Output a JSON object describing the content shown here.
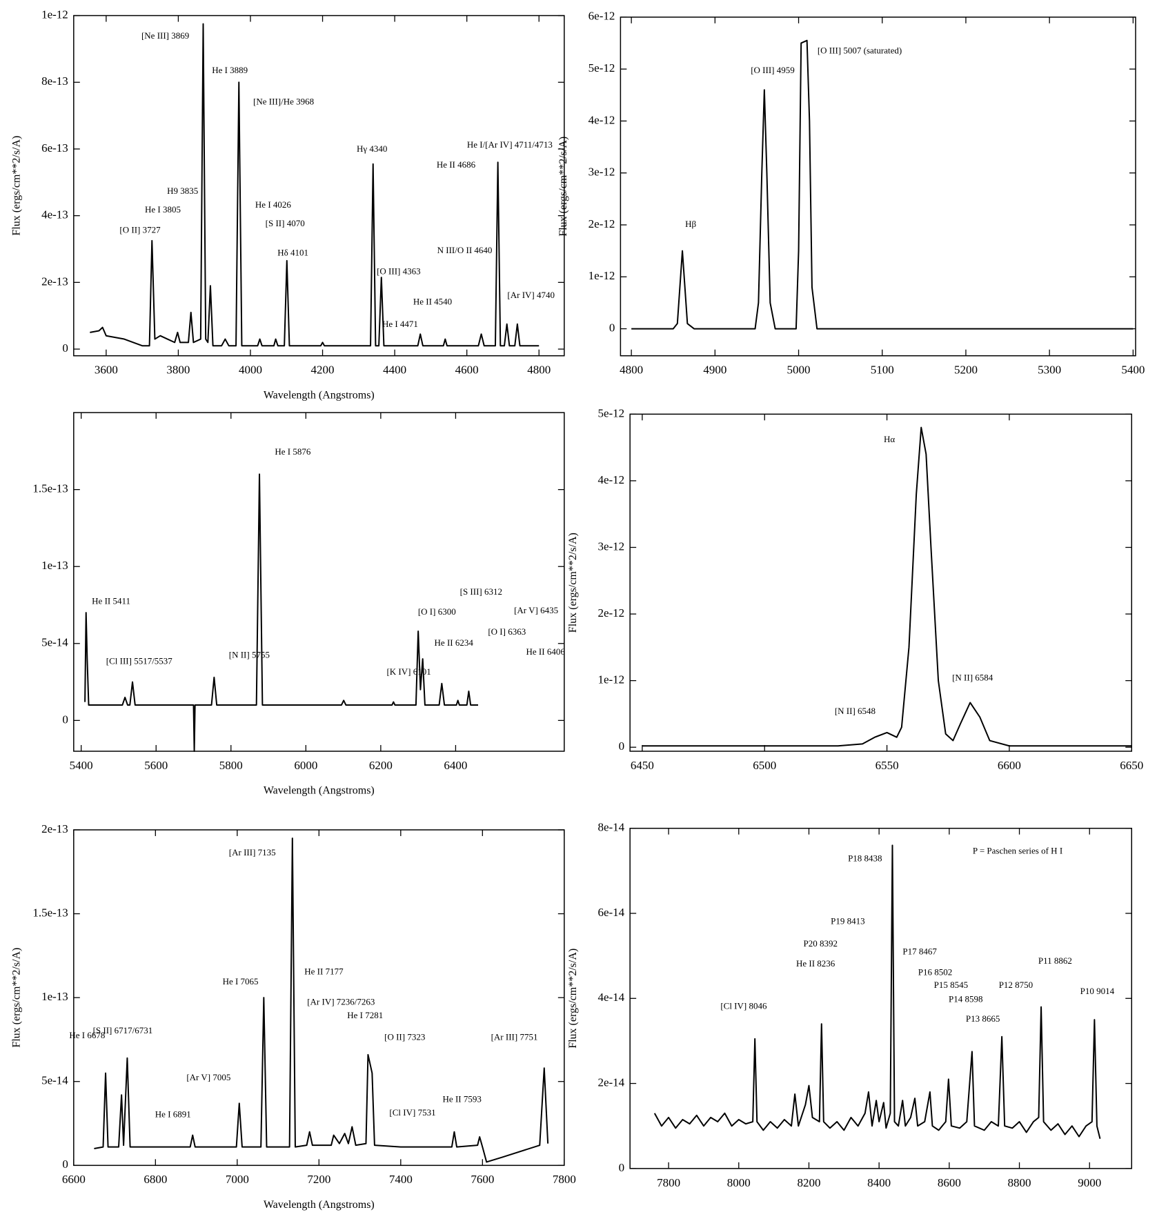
{
  "chart_data": [
    {
      "type": "line",
      "color": "#000000",
      "x_label": "Wavelength (Angstroms)",
      "y_label": "Flux (ergs/cm**2/s/A)",
      "xlim": [
        3510,
        4870
      ],
      "ylim": [
        -2e-14,
        1e-12
      ],
      "xticks": [
        3600,
        3800,
        4000,
        4200,
        4400,
        4600,
        4800
      ],
      "yticks": [
        0,
        {
          "value": 2e-13,
          "label": "2e-13"
        },
        {
          "value": 4e-13,
          "label": "4e-13"
        },
        {
          "value": 6e-13,
          "label": "6e-13"
        },
        {
          "value": 8e-13,
          "label": "8e-13"
        },
        {
          "value": 1e-12,
          "label": "1e-12"
        }
      ],
      "x": [
        3555,
        3580,
        3590,
        3600,
        3650,
        3700,
        3720,
        3727,
        3735,
        3750,
        3770,
        3790,
        3798,
        3805,
        3828,
        3835,
        3842,
        3862,
        3869,
        3876,
        3882,
        3889,
        3896,
        3920,
        3930,
        3940,
        3960,
        3968,
        3976,
        4020,
        4026,
        4032,
        4065,
        4070,
        4076,
        4094,
        4101,
        4108,
        4195,
        4200,
        4205,
        4333,
        4340,
        4347,
        4356,
        4363,
        4370,
        4464,
        4471,
        4478,
        4535,
        4540,
        4545,
        4632,
        4640,
        4648,
        4679,
        4686,
        4693,
        4704,
        4711,
        4718,
        4733,
        4740,
        4747,
        4800
      ],
      "values": [
        5e-14,
        5.5e-14,
        6.5e-14,
        4e-14,
        3e-14,
        1e-14,
        1e-14,
        3.25e-13,
        3e-14,
        4e-14,
        3e-14,
        2e-14,
        5e-14,
        2e-14,
        2e-14,
        1.1e-13,
        2e-14,
        3e-14,
        9.75e-13,
        3e-14,
        2e-14,
        1.9e-13,
        1e-14,
        1e-14,
        3e-14,
        1e-14,
        1e-14,
        8e-13,
        1e-14,
        1e-14,
        3e-14,
        1e-14,
        1e-14,
        3e-14,
        1e-14,
        1e-14,
        2.65e-13,
        1e-14,
        1e-14,
        2e-14,
        1e-14,
        1e-14,
        5.55e-13,
        1e-14,
        1e-14,
        2.15e-13,
        1e-14,
        1e-14,
        4.5e-14,
        1e-14,
        1e-14,
        3e-14,
        1e-14,
        1e-14,
        4.5e-14,
        1e-14,
        1e-14,
        5.6e-13,
        1e-14,
        1e-14,
        7.5e-14,
        1e-14,
        1e-14,
        7.5e-14,
        1e-14,
        1e-14
      ],
      "annotations": [
        {
          "text": "[Ne III] 3869",
          "x": 3764,
          "y": 9.37e-13
        },
        {
          "text": "He I 3889",
          "x": 3943,
          "y": 8.34e-13
        },
        {
          "text": "[Ne III]/He 3968",
          "x": 4092,
          "y": 7.4e-13
        },
        {
          "text": "Hγ 4340",
          "x": 4337,
          "y": 5.98e-13
        },
        {
          "text": "He I/[Ar IV] 4711/4713",
          "x": 4719,
          "y": 6.1e-13
        },
        {
          "text": "He II 4686",
          "x": 4570,
          "y": 5.5e-13
        },
        {
          "text": "H9 3835",
          "x": 3812,
          "y": 4.72e-13
        },
        {
          "text": "He I 3805",
          "x": 3757,
          "y": 4.16e-13
        },
        {
          "text": "[O II] 3727",
          "x": 3694,
          "y": 3.55e-13
        },
        {
          "text": "He I 4026",
          "x": 4063,
          "y": 4.3e-13
        },
        {
          "text": "[S II] 4070",
          "x": 4096,
          "y": 3.74e-13
        },
        {
          "text": "Hδ 4101",
          "x": 4118,
          "y": 2.87e-13
        },
        {
          "text": "N III/O II 4640",
          "x": 4594,
          "y": 2.94e-13
        },
        {
          "text": "[O III] 4363",
          "x": 4411,
          "y": 2.31e-13
        },
        {
          "text": "He II 4540",
          "x": 4505,
          "y": 1.4e-13
        },
        {
          "text": "[Ar IV] 4740",
          "x": 4778,
          "y": 1.59e-13
        },
        {
          "text": "He I 4471",
          "x": 4415,
          "y": 7.2e-14
        }
      ]
    },
    {
      "type": "line",
      "color": "#000000",
      "y_label": "Flux (ergs/cm**2/s/A)",
      "xlim": [
        4787,
        5403
      ],
      "ylim": [
        -5.2e-13,
        6e-12
      ],
      "xticks": [
        4800,
        4900,
        5000,
        5100,
        5200,
        5300,
        5400
      ],
      "yticks": [
        0,
        {
          "value": 1e-12,
          "label": "1e-12"
        },
        {
          "value": 2e-12,
          "label": "2e-12"
        },
        {
          "value": 3e-12,
          "label": "3e-12"
        },
        {
          "value": 4e-12,
          "label": "4e-12"
        },
        {
          "value": 5e-12,
          "label": "5e-12"
        },
        {
          "value": 6e-12,
          "label": "6e-12"
        }
      ],
      "x": [
        4800,
        4850,
        4855,
        4858,
        4861,
        4864,
        4867,
        4875,
        4948,
        4952,
        4956,
        4959,
        4962,
        4966,
        4972,
        4997,
        5000,
        5003,
        5010,
        5013,
        5016,
        5022,
        5400
      ],
      "values": [
        0,
        0,
        1e-13,
        8e-13,
        1.5e-12,
        8e-13,
        1e-13,
        0,
        0,
        5e-13,
        3e-12,
        4.6e-12,
        3e-12,
        5e-13,
        0,
        0,
        1.5e-12,
        5.5e-12,
        5.55e-12,
        4e-12,
        8e-13,
        0,
        0
      ],
      "annotations": [
        {
          "text": "Hβ",
          "x": 4871,
          "y": 2e-12
        },
        {
          "text": "[O III] 4959",
          "x": 4969,
          "y": 4.96e-12
        },
        {
          "text": "[O III] 5007 (saturated)",
          "x": 5073,
          "y": 5.34e-12
        }
      ]
    },
    {
      "type": "line",
      "color": "#000000",
      "x_label": "Wavelength (Angstroms)",
      "xlim": [
        5380,
        6690
      ],
      "ylim": [
        -2e-14,
        2e-13
      ],
      "xticks": [
        5400,
        5600,
        5800,
        6000,
        6200,
        6400
      ],
      "yticks": [
        0,
        {
          "value": 5e-14,
          "label": "5e-14"
        },
        {
          "value": 1e-13,
          "label": "1e-13"
        },
        {
          "value": 1.5e-13,
          "label": "1.5e-13"
        }
      ],
      "x": [
        5410,
        5413,
        5416,
        5420,
        5510,
        5517,
        5524,
        5530,
        5537,
        5544,
        5700,
        5702,
        5704,
        5748,
        5755,
        5762,
        5868,
        5876,
        5884,
        6095,
        6101,
        6107,
        6230,
        6234,
        6238,
        6294,
        6300,
        6306,
        6312,
        6318,
        6356,
        6363,
        6370,
        6402,
        6406,
        6410,
        6430,
        6435,
        6440,
        6460
      ],
      "values": [
        1.2e-14,
        7e-14,
        4e-14,
        1e-14,
        1e-14,
        1.5e-14,
        1e-14,
        1e-14,
        2.5e-14,
        1e-14,
        1e-14,
        -2e-14,
        1e-14,
        1e-14,
        2.8e-14,
        1e-14,
        1e-14,
        1.6e-13,
        1e-14,
        1e-14,
        1.3e-14,
        1e-14,
        1e-14,
        1.2e-14,
        1e-14,
        1e-14,
        5.8e-14,
        2e-14,
        4e-14,
        1e-14,
        1e-14,
        2.4e-14,
        1e-14,
        1e-14,
        1.3e-14,
        1e-14,
        1e-14,
        1.9e-14,
        1e-14,
        1e-14
      ],
      "annotations": [
        {
          "text": "He II 5411",
          "x": 5480,
          "y": 7.7e-14
        },
        {
          "text": "[Cl III] 5517/5537",
          "x": 5555,
          "y": 3.8e-14
        },
        {
          "text": "[N II] 5755",
          "x": 5849,
          "y": 4.2e-14
        },
        {
          "text": "He I 5876",
          "x": 5965,
          "y": 1.74e-13
        },
        {
          "text": "[K IV] 6101",
          "x": 6275,
          "y": 3.1e-14
        },
        {
          "text": "He II 6234",
          "x": 6395,
          "y": 5e-14
        },
        {
          "text": "[O I] 6300",
          "x": 6350,
          "y": 7e-14
        },
        {
          "text": "[S III] 6312",
          "x": 6468,
          "y": 8.3e-14
        },
        {
          "text": "[O I] 6363",
          "x": 6537,
          "y": 5.7e-14
        },
        {
          "text": "He II 6406",
          "x": 6640,
          "y": 4.4e-14
        },
        {
          "text": "[Ar V] 6435",
          "x": 6615,
          "y": 7.1e-14
        }
      ]
    },
    {
      "type": "line",
      "color": "#000000",
      "y_label": "Flux (ergs/cm**2/s/A)",
      "xlim": [
        6445,
        6650
      ],
      "ylim": [
        -6e-14,
        5e-12
      ],
      "xticks": [
        6450,
        6500,
        6550,
        6600,
        6650
      ],
      "yticks": [
        0,
        {
          "value": 1e-12,
          "label": "1e-12"
        },
        {
          "value": 2e-12,
          "label": "2e-12"
        },
        {
          "value": 3e-12,
          "label": "3e-12"
        },
        {
          "value": 4e-12,
          "label": "4e-12"
        },
        {
          "value": 5e-12,
          "label": "5e-12"
        }
      ],
      "x": [
        6450,
        6530,
        6540,
        6545,
        6550,
        6554,
        6556,
        6559,
        6562,
        6564,
        6566,
        6568,
        6571,
        6574,
        6577,
        6580,
        6584,
        6588,
        6592,
        6600,
        6650
      ],
      "values": [
        2e-14,
        2e-14,
        5e-14,
        1.5e-13,
        2.2e-13,
        1.5e-13,
        3e-13,
        1.5e-12,
        3.8e-12,
        4.8e-12,
        4.4e-12,
        3e-12,
        1e-12,
        2e-13,
        1e-13,
        3.5e-13,
        6.7e-13,
        4.5e-13,
        1e-13,
        2e-14,
        2e-14
      ],
      "annotations": [
        {
          "text": "Hα",
          "x": 6551,
          "y": 4.61e-12
        },
        {
          "text": "[N II] 6548",
          "x": 6537,
          "y": 5.3e-13
        },
        {
          "text": "[N II] 6584",
          "x": 6585,
          "y": 1.03e-12
        }
      ]
    },
    {
      "type": "line",
      "color": "#000000",
      "x_label": "Wavelength (Angstroms)",
      "y_label": "Flux (ergs/cm**2/s/A)",
      "xlim": [
        6600,
        7800
      ],
      "ylim": [
        0,
        2e-13
      ],
      "xticks": [
        6600,
        6800,
        7000,
        7200,
        7400,
        7600,
        7800
      ],
      "yticks": [
        0,
        {
          "value": 5e-14,
          "label": "5e-14"
        },
        {
          "value": 1e-13,
          "label": "1e-13"
        },
        {
          "value": 1.5e-13,
          "label": "1.5e-13"
        },
        {
          "value": 2e-13,
          "label": "2e-13"
        }
      ],
      "x": [
        6650,
        6672,
        6678,
        6684,
        6710,
        6717,
        6722,
        6731,
        6738,
        6885,
        6891,
        6897,
        6998,
        7005,
        7012,
        7058,
        7065,
        7072,
        7128,
        7135,
        7142,
        7170,
        7177,
        7184,
        7230,
        7236,
        7250,
        7263,
        7272,
        7281,
        7290,
        7315,
        7320,
        7330,
        7336,
        7400,
        7525,
        7531,
        7537,
        7588,
        7593,
        7600,
        7610,
        7650,
        7740,
        7751,
        7760
      ],
      "values": [
        1e-14,
        1.1e-14,
        5.5e-14,
        1.1e-14,
        1.1e-14,
        4.2e-14,
        1.2e-14,
        6.4e-14,
        1.1e-14,
        1.1e-14,
        1.8e-14,
        1.1e-14,
        1.1e-14,
        3.7e-14,
        1.1e-14,
        1.1e-14,
        1e-13,
        1.1e-14,
        1.1e-14,
        1.95e-13,
        1.1e-14,
        1.2e-14,
        2e-14,
        1.2e-14,
        1.2e-14,
        1.8e-14,
        1.3e-14,
        1.9e-14,
        1.3e-14,
        2.3e-14,
        1.2e-14,
        1.3e-14,
        6.6e-14,
        5.5e-14,
        1.2e-14,
        1.1e-14,
        1.1e-14,
        2e-14,
        1.1e-14,
        1.2e-14,
        1.7e-14,
        1.1e-14,
        2e-15,
        5e-15,
        1.2e-14,
        5.8e-14,
        1.3e-14
      ],
      "annotations": [
        {
          "text": "He I 6678",
          "x": 6633,
          "y": 7.7e-14
        },
        {
          "text": "[S II] 6717/6731",
          "x": 6720,
          "y": 8e-14
        },
        {
          "text": "He I 6891",
          "x": 6843,
          "y": 3e-14
        },
        {
          "text": "[Ar V] 7005",
          "x": 6930,
          "y": 5.2e-14
        },
        {
          "text": "He I 7065",
          "x": 7008,
          "y": 1.09e-13
        },
        {
          "text": "[Ar III] 7135",
          "x": 7037,
          "y": 1.86e-13
        },
        {
          "text": "He II 7177",
          "x": 7212,
          "y": 1.15e-13
        },
        {
          "text": "[Ar IV] 7236/7263",
          "x": 7254,
          "y": 9.7e-14
        },
        {
          "text": "He I 7281",
          "x": 7313,
          "y": 8.9e-14
        },
        {
          "text": "[O II] 7323",
          "x": 7410,
          "y": 7.6e-14
        },
        {
          "text": "[Cl IV] 7531",
          "x": 7429,
          "y": 3.1e-14
        },
        {
          "text": "He II 7593",
          "x": 7550,
          "y": 3.9e-14
        },
        {
          "text": "[Ar III] 7751",
          "x": 7678,
          "y": 7.6e-14
        }
      ]
    },
    {
      "type": "line",
      "color": "#000000",
      "y_label": "Flux (ergs/cm**2/s/A)",
      "xlim": [
        7690,
        9120
      ],
      "ylim": [
        0,
        8e-14
      ],
      "xticks": [
        7800,
        8000,
        8200,
        8400,
        8600,
        8800,
        9000
      ],
      "yticks": [
        0,
        {
          "value": 2e-14,
          "label": "2e-14"
        },
        {
          "value": 4e-14,
          "label": "4e-14"
        },
        {
          "value": 6e-14,
          "label": "6e-14"
        },
        {
          "value": 8e-14,
          "label": "8e-14"
        }
      ],
      "x": [
        7760,
        7780,
        7800,
        7820,
        7840,
        7860,
        7880,
        7900,
        7920,
        7940,
        7960,
        7980,
        8000,
        8020,
        8040,
        8046,
        8052,
        8070,
        8090,
        8110,
        8130,
        8150,
        8160,
        8170,
        8190,
        8200,
        8210,
        8230,
        8236,
        8242,
        8260,
        8280,
        8300,
        8320,
        8340,
        8360,
        8370,
        8380,
        8392,
        8400,
        8413,
        8420,
        8432,
        8438,
        8444,
        8455,
        8467,
        8475,
        8490,
        8502,
        8510,
        8530,
        8545,
        8552,
        8570,
        8590,
        8598,
        8606,
        8630,
        8650,
        8665,
        8672,
        8700,
        8720,
        8740,
        8750,
        8758,
        8780,
        8800,
        8820,
        8840,
        8855,
        8862,
        8869,
        8890,
        8910,
        8930,
        8950,
        8970,
        8990,
        9007,
        9014,
        9021,
        9030
      ],
      "values": [
        1.3e-14,
        1e-14,
        1.2e-14,
        9.5e-15,
        1.15e-14,
        1.05e-14,
        1.25e-14,
        1e-14,
        1.2e-14,
        1.1e-14,
        1.3e-14,
        1e-14,
        1.15e-14,
        1.05e-14,
        1.1e-14,
        3.05e-14,
        1.1e-14,
        9e-15,
        1.1e-14,
        9.5e-15,
        1.15e-14,
        1e-14,
        1.75e-14,
        1e-14,
        1.5e-14,
        1.95e-14,
        1.2e-14,
        1.1e-14,
        3.4e-14,
        1.1e-14,
        9.5e-15,
        1.1e-14,
        9e-15,
        1.2e-14,
        1e-14,
        1.3e-14,
        1.8e-14,
        1e-14,
        1.6e-14,
        1.1e-14,
        1.55e-14,
        9.5e-15,
        1.3e-14,
        7.6e-14,
        1.1e-14,
        1e-14,
        1.6e-14,
        1e-14,
        1.2e-14,
        1.65e-14,
        1e-14,
        1.1e-14,
        1.8e-14,
        1e-14,
        9e-15,
        1.1e-14,
        2.1e-14,
        1e-14,
        9.5e-15,
        1.1e-14,
        2.75e-14,
        1e-14,
        9e-15,
        1.1e-14,
        1e-14,
        3.1e-14,
        1e-14,
        9.5e-15,
        1.1e-14,
        8.5e-15,
        1.1e-14,
        1.2e-14,
        3.8e-14,
        1.1e-14,
        9e-15,
        1.05e-14,
        8e-15,
        1e-14,
        7.5e-15,
        1e-14,
        1.1e-14,
        3.5e-14,
        1e-14,
        7e-15
      ],
      "annotations": [
        {
          "text": "P = Paschen series of H I",
          "x": 8795,
          "y": 7.45e-14
        },
        {
          "text": "P18 8438",
          "x": 8360,
          "y": 7.27e-14
        },
        {
          "text": "P19 8413",
          "x": 8311,
          "y": 5.8e-14
        },
        {
          "text": "P20 8392",
          "x": 8233,
          "y": 5.27e-14
        },
        {
          "text": "P17 8467",
          "x": 8516,
          "y": 5.08e-14
        },
        {
          "text": "He II 8236",
          "x": 8219,
          "y": 4.8e-14
        },
        {
          "text": "P16 8502",
          "x": 8560,
          "y": 4.6e-14
        },
        {
          "text": "P15 8545",
          "x": 8605,
          "y": 4.3e-14
        },
        {
          "text": "P14 8598",
          "x": 8647,
          "y": 3.96e-14
        },
        {
          "text": "P11 8862",
          "x": 8902,
          "y": 4.86e-14
        },
        {
          "text": "P12 8750",
          "x": 8790,
          "y": 4.3e-14
        },
        {
          "text": "P10 9014",
          "x": 9022,
          "y": 4.15e-14
        },
        {
          "text": "[Cl IV] 8046",
          "x": 8014,
          "y": 3.8e-14
        },
        {
          "text": "P13 8665",
          "x": 8696,
          "y": 3.5e-14
        }
      ]
    }
  ]
}
